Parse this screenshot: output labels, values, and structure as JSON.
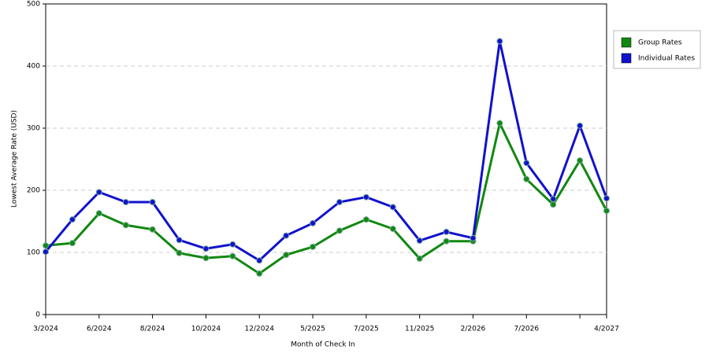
{
  "chart_data": {
    "type": "line",
    "x_label": "Month of Check In",
    "y_label": "Lowest Average Rate (USD)",
    "categories": [
      "3/2024",
      null,
      "6/2024",
      null,
      "8/2024",
      null,
      "10/2024",
      null,
      "12/2024",
      null,
      "5/2025",
      null,
      "7/2025",
      null,
      "11/2025",
      null,
      "2/2026",
      null,
      "7/2026",
      null,
      null,
      "4/2027"
    ],
    "series": [
      {
        "name": "Group Rates",
        "color": "#118811",
        "values": [
          111,
          115,
          163,
          144,
          137,
          99,
          91,
          94,
          66,
          96,
          109,
          135,
          153,
          138,
          90,
          118,
          118,
          308,
          218,
          177,
          248,
          167
        ]
      },
      {
        "name": "Individual Rates",
        "color": "#1111cc",
        "values": [
          101,
          153,
          197,
          181,
          181,
          120,
          106,
          113,
          87,
          127,
          147,
          181,
          189,
          173,
          119,
          133,
          123,
          440,
          244,
          186,
          304,
          187
        ]
      }
    ],
    "ylim": [
      0,
      500
    ],
    "yticks": [
      0,
      100,
      200,
      300,
      400,
      500
    ],
    "grid": true,
    "legend": "right"
  }
}
